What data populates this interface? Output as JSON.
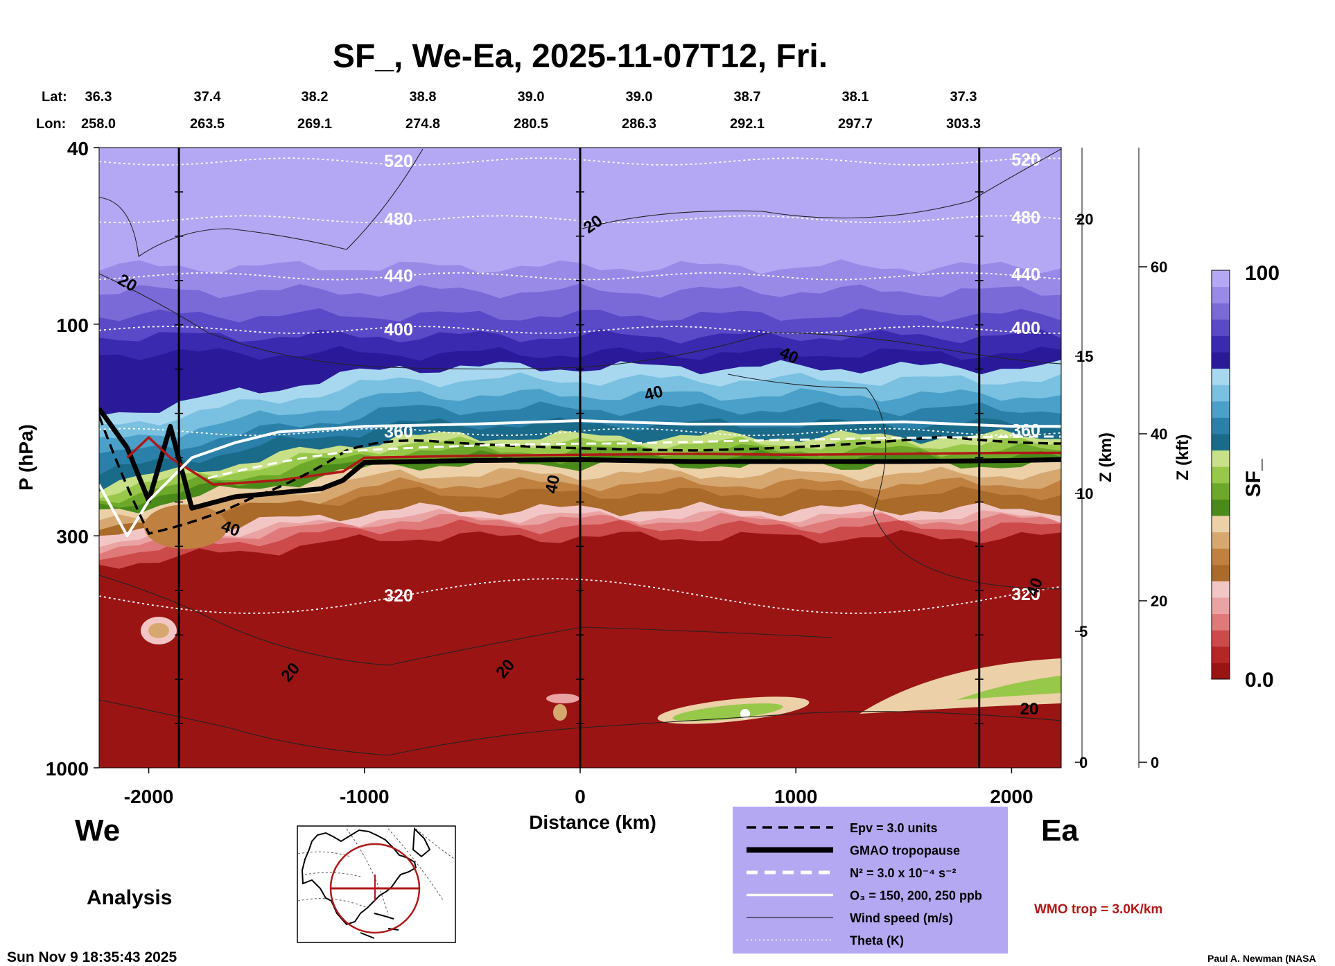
{
  "chart_data": {
    "type": "heatmap",
    "title": "SF_, We-Ea, 2025-11-07T12, Fri.",
    "variable": "SF_",
    "xlabel": "Distance (km)",
    "ylabel": "P (hPa)",
    "y2label": "Z (km)",
    "y3label": "Z (kft)",
    "xlim": [
      -2230,
      2230
    ],
    "ylim_hpa": [
      1000,
      40
    ],
    "x_ticks": [
      -2000,
      -1000,
      0,
      1000,
      2000
    ],
    "y_ticks_hpa": [
      40,
      100,
      300,
      1000
    ],
    "z_km_ticks": [
      0,
      5,
      10,
      15,
      20
    ],
    "z_kft_ticks": [
      0,
      20,
      40,
      60
    ],
    "colorbar": {
      "min_label": "0.0",
      "max_label": "100",
      "min": 0.0,
      "max": 100,
      "colors": [
        "#9b1414",
        "#b52626",
        "#cc4a4a",
        "#e07a7a",
        "#eaa3a3",
        "#f3c6c6",
        "#a96a2a",
        "#c08040",
        "#d6a870",
        "#ecd0a8",
        "#4a8a1a",
        "#6ea82a",
        "#98c84a",
        "#c8e088",
        "#1a6a8a",
        "#2a80a8",
        "#4aa0c8",
        "#7ac0e0",
        "#a8d8f0",
        "#2a1a9a",
        "#3a2ab0",
        "#5a4ac8",
        "#7a6ad8",
        "#9a8ae8",
        "#b4a8f4"
      ]
    },
    "lat_label": "Lat:",
    "lon_label": "Lon:",
    "lat_ticks": [
      {
        "x": -2230,
        "label": "36.3"
      },
      {
        "x": -1730,
        "label": "37.4"
      },
      {
        "x": -1230,
        "label": "38.2"
      },
      {
        "x": -730,
        "label": "38.8"
      },
      {
        "x": -230,
        "label": "39.0"
      },
      {
        "x": 270,
        "label": "39.0"
      },
      {
        "x": 770,
        "label": "38.7"
      },
      {
        "x": 1270,
        "label": "38.1"
      },
      {
        "x": 1770,
        "label": "37.3"
      }
    ],
    "lon_ticks": [
      {
        "x": -2230,
        "label": "258.0"
      },
      {
        "x": -1730,
        "label": "263.5"
      },
      {
        "x": -1230,
        "label": "269.1"
      },
      {
        "x": -730,
        "label": "274.8"
      },
      {
        "x": -230,
        "label": "280.5"
      },
      {
        "x": 270,
        "label": "286.3"
      },
      {
        "x": 770,
        "label": "292.1"
      },
      {
        "x": 1270,
        "label": "297.7"
      },
      {
        "x": 1770,
        "label": "303.3"
      }
    ],
    "vertical_lines_x": [
      -1860,
      0,
      1850
    ],
    "theta_contours": [
      {
        "label": "520",
        "p": 43
      },
      {
        "label": "480",
        "p": 58
      },
      {
        "label": "440",
        "p": 78
      },
      {
        "label": "400",
        "p": 103
      },
      {
        "label": "360",
        "p": 175
      },
      {
        "label": "320",
        "p": 410
      }
    ],
    "wind_labels": [
      "20",
      "20",
      "40",
      "40",
      "40",
      "40",
      "20",
      "20",
      "40",
      "20"
    ],
    "tropopause_p_hpa": 205,
    "series": [
      {
        "name": "GMAO tropopause",
        "x": [
          -2230,
          -2100,
          -2000,
          -1900,
          -1800,
          -1600,
          -1400,
          -1200,
          -1100,
          -1000,
          -500,
          0,
          500,
          1000,
          1500,
          2000,
          2230
        ],
        "p": [
          155,
          190,
          250,
          170,
          260,
          245,
          240,
          235,
          225,
          205,
          203,
          202,
          204,
          204,
          204,
          203,
          202
        ]
      },
      {
        "name": "WMO trop",
        "x": [
          -2100,
          -2000,
          -1900,
          -1700,
          -1400,
          -1100,
          -1000,
          -500,
          0,
          500,
          1000,
          1500,
          2000,
          2230
        ],
        "p": [
          200,
          180,
          200,
          230,
          225,
          215,
          200,
          198,
          197,
          196,
          197,
          196,
          195,
          195
        ]
      },
      {
        "name": "O3 = 150, 200, 250 ppb",
        "x": [
          -2230,
          -2100,
          -2000,
          -1800,
          -1600,
          -1400,
          -1000,
          -500,
          0,
          500,
          1000,
          1500,
          2000,
          2230
        ],
        "p": [
          230,
          300,
          250,
          200,
          185,
          175,
          170,
          168,
          165,
          168,
          168,
          166,
          170,
          170
        ]
      }
    ],
    "contour_legend_title": ""
  },
  "labels": {
    "west": "We",
    "east": "Ea",
    "analysis": "Analysis",
    "timestamp": "Sun Nov  9 18:35:43 2025",
    "credit": "Paul A. Newman (NASA",
    "wmo_note": "WMO trop = 3.0K/km"
  },
  "legend": {
    "items": [
      {
        "style": "dashed-black",
        "label": "Epv = 3.0 units"
      },
      {
        "style": "thick-black",
        "label": "GMAO tropopause"
      },
      {
        "style": "dashed-white",
        "label": "N² = 3.0 x 10⁻⁴ s⁻²"
      },
      {
        "style": "solid-white",
        "label": "O₃ = 150, 200, 250 ppb"
      },
      {
        "style": "thin-black",
        "label": "Wind speed (m/s)"
      },
      {
        "style": "dotted-white",
        "label": "Theta (K)"
      }
    ]
  },
  "colors": {
    "legend_bg": "#b5a8f2",
    "wmo": "#b01818",
    "map_cross": "#b01818"
  }
}
